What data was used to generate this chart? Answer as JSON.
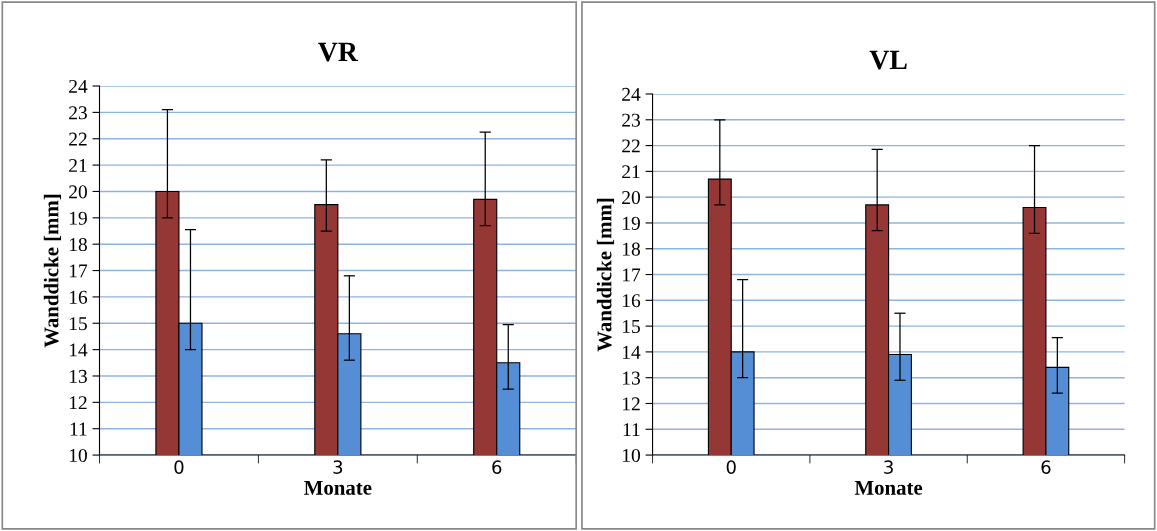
{
  "chart_data": [
    {
      "type": "bar",
      "title": "VR",
      "xlabel": "Monate",
      "ylabel": "Wanddicke [mm]",
      "categories": [
        "0",
        "3",
        "6"
      ],
      "ylim": [
        10,
        24
      ],
      "yticks": [
        10,
        11,
        12,
        13,
        14,
        15,
        16,
        17,
        18,
        19,
        20,
        21,
        22,
        23,
        24
      ],
      "grid": "y",
      "legend": false,
      "series": [
        {
          "color": "#953735",
          "values": [
            20.0,
            19.5,
            19.7
          ],
          "errors": [
            [
              19.0,
              23.1
            ],
            [
              18.5,
              21.2
            ],
            [
              18.7,
              22.25
            ]
          ]
        },
        {
          "color": "#558ed5",
          "values": [
            15.0,
            14.6,
            13.5
          ],
          "errors": [
            [
              14.0,
              18.55
            ],
            [
              13.6,
              16.8
            ],
            [
              12.5,
              14.95
            ]
          ]
        }
      ]
    },
    {
      "type": "bar",
      "title": "VL",
      "xlabel": "Monate",
      "ylabel": "Wanddicke [mm]",
      "categories": [
        "0",
        "3",
        "6"
      ],
      "ylim": [
        10,
        24
      ],
      "yticks": [
        10,
        11,
        12,
        13,
        14,
        15,
        16,
        17,
        18,
        19,
        20,
        21,
        22,
        23,
        24
      ],
      "grid": "y",
      "legend": false,
      "series": [
        {
          "color": "#953735",
          "values": [
            20.7,
            19.7,
            19.6
          ],
          "errors": [
            [
              19.7,
              23.0
            ],
            [
              18.7,
              21.85
            ],
            [
              18.6,
              22.0
            ]
          ]
        },
        {
          "color": "#558ed5",
          "values": [
            14.0,
            13.9,
            13.4
          ],
          "errors": [
            [
              13.0,
              16.8
            ],
            [
              12.9,
              15.5
            ],
            [
              12.4,
              14.55
            ]
          ]
        }
      ]
    }
  ]
}
